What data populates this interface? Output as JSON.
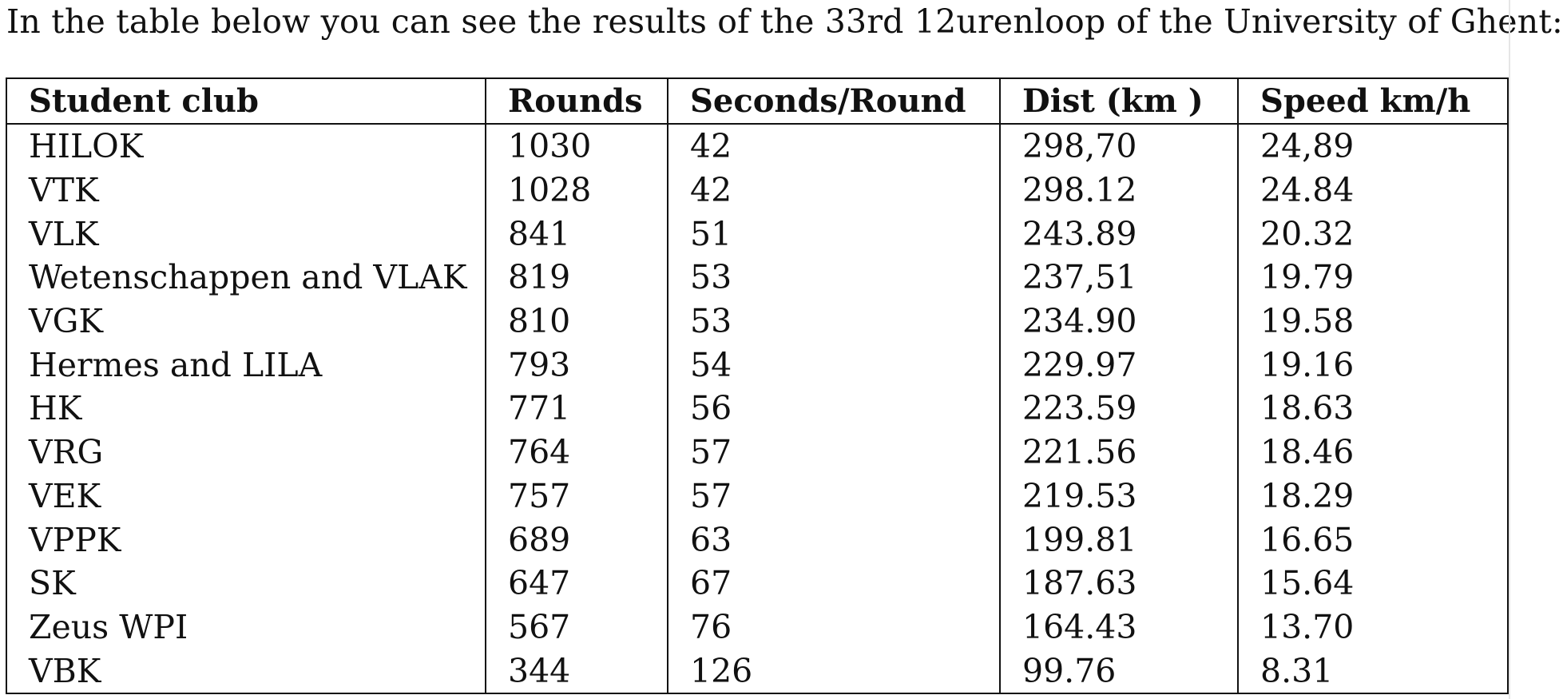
{
  "intro": "In the table below you can see the results of the 33rd 12urenloop of the University of Ghent:",
  "table": {
    "headers": [
      "Student club",
      "Rounds",
      "Seconds/Round",
      "Dist (km )",
      "Speed km/h"
    ],
    "rows": [
      [
        "HILOK",
        "1030",
        "42",
        "298,70",
        "24,89"
      ],
      [
        "VTK",
        "1028",
        "42",
        "298.12",
        "24.84"
      ],
      [
        "VLK",
        "841",
        "51",
        "243.89",
        "20.32"
      ],
      [
        "Wetenschappen and VLAK",
        "819",
        "53",
        "237,51",
        "19.79"
      ],
      [
        "VGK",
        "810",
        "53",
        "234.90",
        "19.58"
      ],
      [
        "Hermes and LILA",
        "793",
        "54",
        "229.97",
        "19.16"
      ],
      [
        "HK",
        "771",
        "56",
        "223.59",
        "18.63"
      ],
      [
        "VRG",
        "764",
        "57",
        "221.56",
        "18.46"
      ],
      [
        "VEK",
        "757",
        "57",
        "219.53",
        "18.29"
      ],
      [
        "VPPK",
        "689",
        "63",
        "199.81",
        "16.65"
      ],
      [
        "SK",
        "647",
        "67",
        "187.63",
        "15.64"
      ],
      [
        "Zeus WPI",
        "567",
        "76",
        "164.43",
        "13.70"
      ],
      [
        "VBK",
        "344",
        "126",
        "99.76",
        "8.31"
      ]
    ]
  }
}
